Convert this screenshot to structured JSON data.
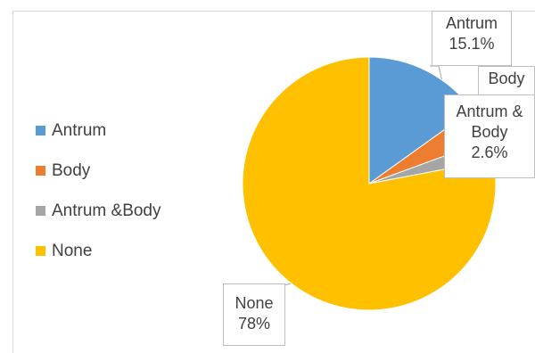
{
  "chart_data": {
    "type": "pie",
    "title": "",
    "slices": [
      {
        "label": "Antrum",
        "value": 15.1,
        "color": "#5b9bd5"
      },
      {
        "label": "Body",
        "value": 4.3,
        "color": "#ed7d31"
      },
      {
        "label": "Antrum &Body",
        "value": 2.6,
        "color": "#a5a5a5"
      },
      {
        "label": "None",
        "value": 78,
        "color": "#ffc000"
      }
    ],
    "data_labels": [
      {
        "line1": "Antrum",
        "line2": "",
        "line3": "15.1%"
      },
      {
        "line1": "Body",
        "line2": "",
        "line3": ""
      },
      {
        "line1": "Antrum &",
        "line2": "Body",
        "line3": "2.6%"
      },
      {
        "line1": "None",
        "line2": "",
        "line3": "78%"
      }
    ],
    "legend": {
      "position": "left",
      "entries": [
        "Antrum",
        "Body",
        "Antrum &Body",
        "None"
      ]
    }
  }
}
